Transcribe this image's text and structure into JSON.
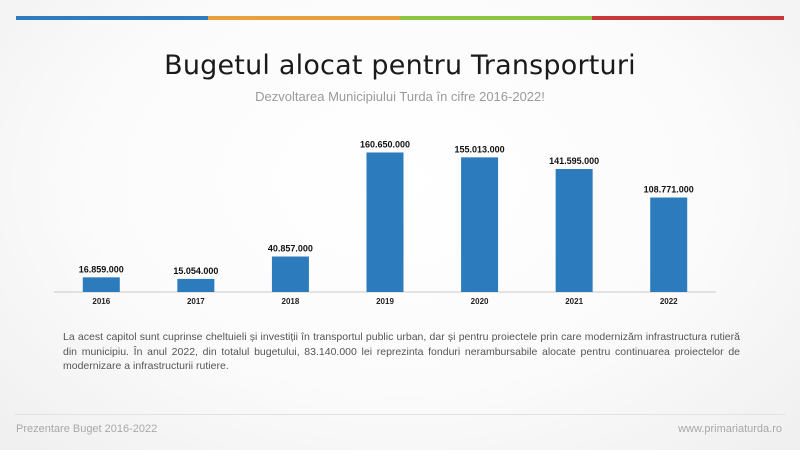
{
  "header": {
    "stripe_colors": [
      "#2e7bbf",
      "#e8a13a",
      "#8cc63f",
      "#c8373a"
    ],
    "title": "Bugetul alocat pentru Transporturi",
    "subtitle": "Dezvoltarea Municipiului Turda în cifre 2016-2022!"
  },
  "chart_data": {
    "type": "bar",
    "categories": [
      "2016",
      "2017",
      "2018",
      "2019",
      "2020",
      "2021",
      "2022"
    ],
    "values": [
      16859000,
      15054000,
      40857000,
      160650000,
      155013000,
      141595000,
      108771000
    ],
    "value_labels": [
      "16.859.000",
      "15.054.000",
      "40.857.000",
      "160.650.000",
      "155.013.000",
      "141.595.000",
      "108.771.000"
    ],
    "bar_color": "#2b7bbd",
    "ylim": [
      0,
      175000000
    ],
    "grid": false,
    "legend": "none"
  },
  "description": "La acest capitol sunt cuprinse cheltuieli și investiții în transportul public urban, dar și pentru proiectele prin care modernizăm infrastructura rutieră din municipiu. În anul 2022, din totalul bugetului, 83.140.000 lei reprezinta fonduri nerambursabile alocate pentru continuarea proiectelor de modernizare a infrastructurii rutiere.",
  "footer": {
    "left": "Prezentare Buget 2016-2022",
    "right": "www.primariaturda.ro"
  }
}
